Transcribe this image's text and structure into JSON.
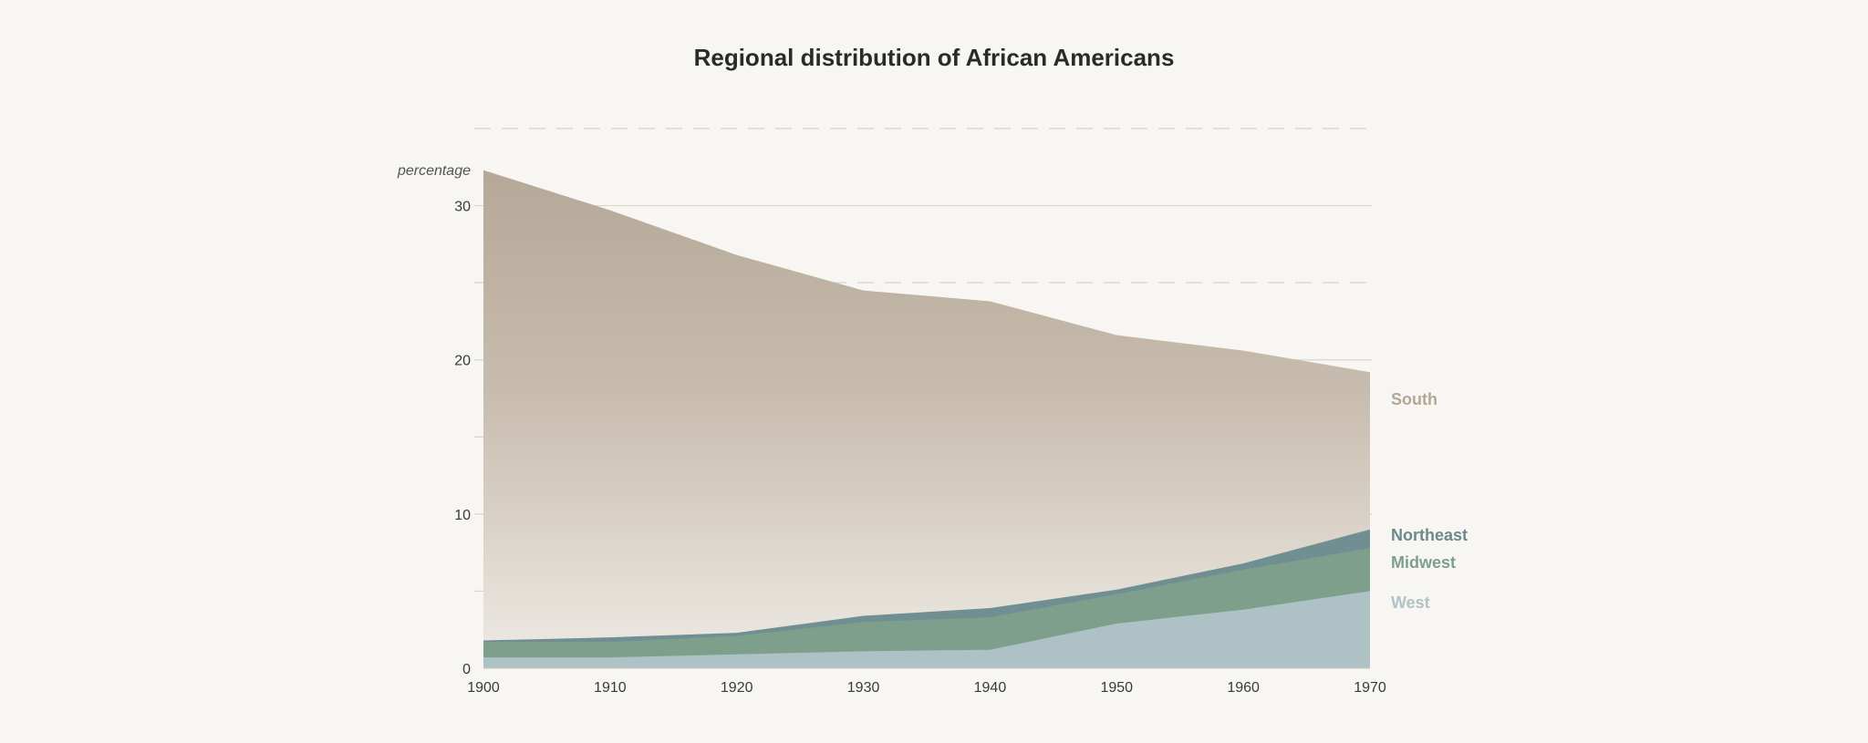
{
  "title": "Regional distribution of African Americans",
  "chart_data": {
    "type": "area",
    "stacked": false,
    "title": "Regional distribution of African Americans",
    "ylabel": "percentage",
    "xlabel": "",
    "x": [
      1900,
      1910,
      1920,
      1930,
      1940,
      1950,
      1960,
      1970
    ],
    "xticks": [
      "1900",
      "1910",
      "1920",
      "1930",
      "1940",
      "1950",
      "1960",
      "1970"
    ],
    "yticks": [
      "0",
      "10",
      "20",
      "30"
    ],
    "ylim": [
      0,
      35
    ],
    "grid": true,
    "legend": "right, direct labels",
    "series": [
      {
        "name": "South",
        "color": "#b7a999",
        "values": [
          32.3,
          29.7,
          26.8,
          24.5,
          23.8,
          21.6,
          20.6,
          19.2
        ]
      },
      {
        "name": "Northeast",
        "color": "#6f8f92",
        "values": [
          1.8,
          2.0,
          2.3,
          3.4,
          3.9,
          5.1,
          6.8,
          9.0
        ]
      },
      {
        "name": "Midwest",
        "color": "#7f9f8d",
        "values": [
          1.7,
          1.7,
          2.1,
          3.0,
          3.3,
          4.8,
          6.4,
          7.8
        ]
      },
      {
        "name": "West",
        "color": "#aec2c6",
        "values": [
          0.7,
          0.7,
          0.9,
          1.1,
          1.2,
          2.9,
          3.8,
          5.0
        ]
      }
    ]
  }
}
